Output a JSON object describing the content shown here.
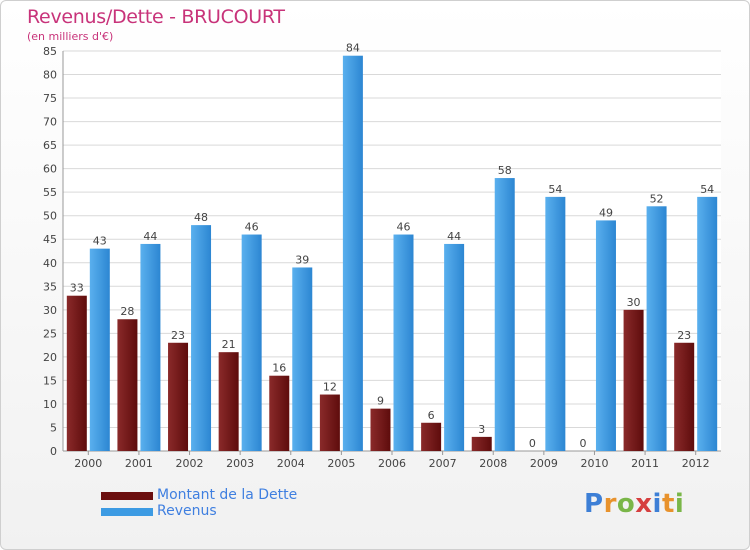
{
  "title": "Revenus/Dette - BRUCOURT",
  "subtitle": "(en milliers d'€)",
  "colors": {
    "dette": "#7a1a1a",
    "revenus": "#3d9be3",
    "title": "#c8337a",
    "legend_text": "#3f7fe0",
    "grid": "#d9d9d9"
  },
  "chart_data": {
    "type": "bar",
    "title": "Revenus/Dette - BRUCOURT",
    "ylabel": "(en milliers d'€)",
    "xlabel": "",
    "ylim": [
      0,
      85
    ],
    "yticks": [
      "0",
      "5",
      "10",
      "15",
      "20",
      "25",
      "30",
      "35",
      "40",
      "45",
      "50",
      "55",
      "60",
      "65",
      "70",
      "75",
      "80",
      "85"
    ],
    "grid": true,
    "legend": "bottom-left",
    "categories": [
      "2000",
      "2001",
      "2002",
      "2003",
      "2004",
      "2005",
      "2006",
      "2007",
      "2008",
      "2009",
      "2010",
      "2011",
      "2012"
    ],
    "series": [
      {
        "name": "Montant de la Dette",
        "values": [
          33,
          28,
          23,
          21,
          16,
          12,
          9,
          6,
          3,
          0,
          0,
          30,
          23
        ]
      },
      {
        "name": "Revenus",
        "values": [
          43,
          44,
          48,
          46,
          39,
          84,
          46,
          44,
          58,
          54,
          49,
          52,
          54
        ]
      }
    ]
  },
  "legend": {
    "dette_label": "Montant de la Dette",
    "revenus_label": "Revenus"
  },
  "logo": {
    "letters": [
      "P",
      "r",
      "o",
      "x",
      "i",
      "t",
      "i"
    ],
    "colors": [
      "#3d7fd6",
      "#e8922c",
      "#7ab648",
      "#d63f3f",
      "#3d7fd6",
      "#e8922c",
      "#7ab648"
    ]
  }
}
